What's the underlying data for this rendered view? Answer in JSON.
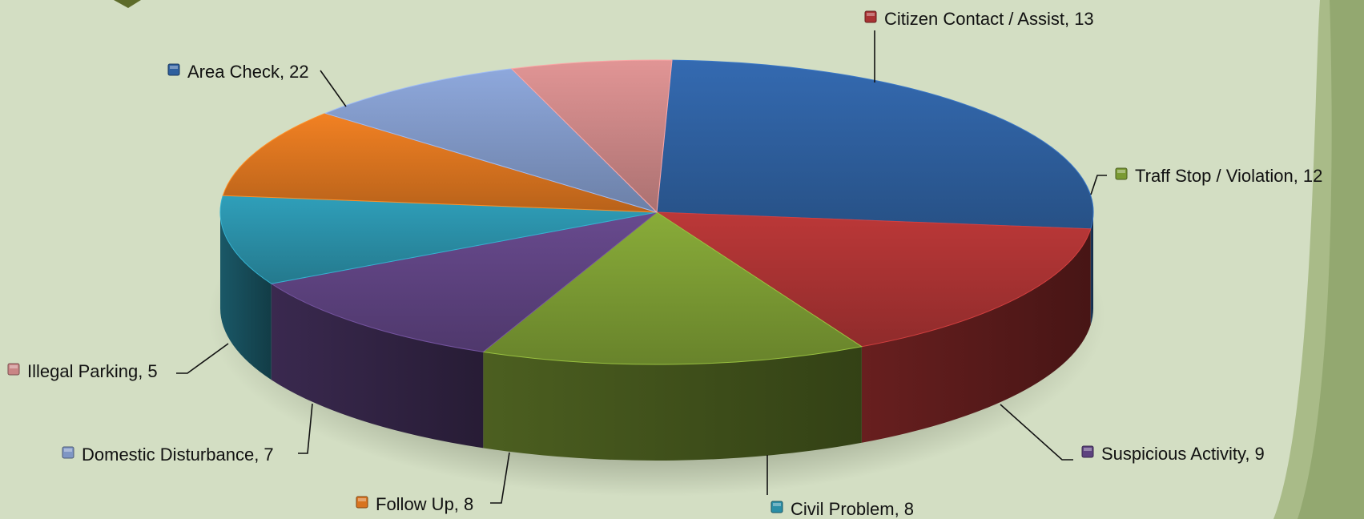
{
  "chart_data": {
    "type": "pie",
    "style": "3d-exploded-none",
    "title": "",
    "labels": [
      "Area Check",
      "Citizen Contact / Assist",
      "Traff Stop / Violation",
      "Suspicious Activity",
      "Civil Problem",
      "Follow Up",
      "Domestic Disturbance",
      "Illegal Parking"
    ],
    "values": [
      22,
      13,
      12,
      9,
      8,
      8,
      7,
      5
    ],
    "data_labels": [
      "Area Check, 22",
      "Citizen Contact / Assist, 13",
      "Traff Stop / Violation, 12",
      "Suspicious Activity, 9",
      "Civil Problem, 8",
      "Follow Up, 8",
      "Domestic Disturbance, 7",
      "Illegal Parking, 5"
    ],
    "colors": [
      "#2e5f9e",
      "#a83232",
      "#7a9a33",
      "#5d427f",
      "#2a8ea6",
      "#d8731f",
      "#7f96c4",
      "#c98585"
    ],
    "legend": "none (labels with leader lines)"
  },
  "background": {
    "color": "#d3dec3",
    "accent": "#9bae78"
  }
}
